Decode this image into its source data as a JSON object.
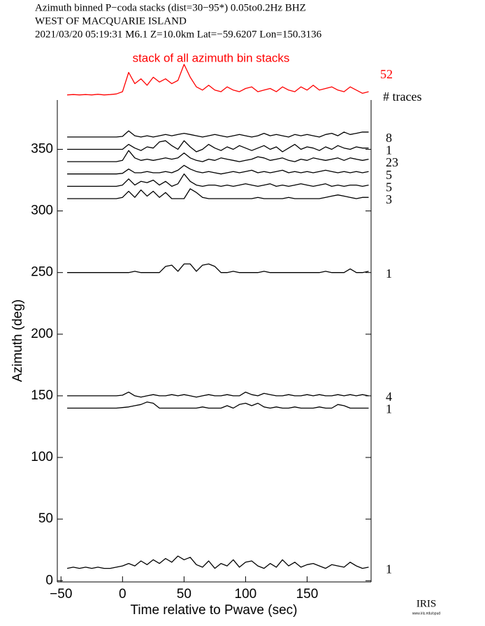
{
  "chart_data": {
    "type": "record-section",
    "title_lines": [
      "Azimuth binned P−coda stacks (dist=30−95*)  0.05to0.2Hz  BHZ",
      "WEST OF MACQUARIE ISLAND",
      "2021/03/20  05:19:31  M6.1  Z=10.0km Lat=−59.6207 Lon=150.3136"
    ],
    "xlabel": "Time relative to Pwave (sec)",
    "ylabel": "Azimuth (deg)",
    "count_header": "# traces",
    "xlim": [
      -53,
      202
    ],
    "ylim": [
      -1,
      390
    ],
    "xticks": [
      {
        "value": -50,
        "label": "−50"
      },
      0,
      50,
      100,
      150
    ],
    "yticks": [
      0,
      50,
      100,
      150,
      200,
      250,
      300,
      350
    ],
    "x": [
      -45,
      -40,
      -35,
      -30,
      -25,
      -20,
      -15,
      -10,
      -5,
      0,
      5,
      10,
      15,
      20,
      25,
      30,
      35,
      40,
      45,
      50,
      55,
      60,
      65,
      70,
      75,
      80,
      85,
      90,
      95,
      100,
      105,
      110,
      115,
      120,
      125,
      130,
      135,
      140,
      145,
      150,
      155,
      160,
      165,
      170,
      175,
      180,
      185,
      190,
      195,
      200
    ],
    "stack": {
      "title": "stack of all azimuth bin stacks",
      "count": 52,
      "color": "#ff0000",
      "values": [
        0.05,
        0.06,
        0.05,
        0.06,
        0.05,
        0.07,
        0.05,
        0.06,
        0.08,
        0.15,
        0.75,
        0.4,
        0.55,
        0.35,
        0.6,
        0.45,
        0.55,
        0.4,
        0.5,
        1.0,
        0.6,
        0.3,
        0.2,
        0.35,
        0.2,
        0.15,
        0.3,
        0.2,
        0.15,
        0.25,
        0.3,
        0.15,
        0.2,
        0.25,
        0.15,
        0.3,
        0.2,
        0.15,
        0.3,
        0.2,
        0.35,
        0.2,
        0.25,
        0.3,
        0.2,
        0.15,
        0.3,
        0.2,
        0.1,
        0.15
      ]
    },
    "series": [
      {
        "count": 8,
        "color": "#000000",
        "values": [
          360,
          360,
          360,
          360,
          360,
          360,
          360,
          360,
          360,
          360.5,
          365,
          361,
          360,
          361,
          360,
          361,
          362,
          361,
          362,
          363,
          362,
          361,
          360,
          361,
          362,
          361,
          360,
          361,
          362,
          361,
          360,
          361,
          363,
          361,
          362,
          361,
          360,
          362,
          361,
          362,
          361,
          360,
          362,
          363,
          361,
          364,
          362,
          363,
          364,
          364
        ]
      },
      {
        "count": 1,
        "color": "#000000",
        "values": [
          350,
          350,
          350,
          350,
          350,
          350,
          350,
          350,
          350,
          350,
          354,
          351,
          349,
          352,
          351,
          356,
          357,
          353,
          350,
          357,
          352,
          348,
          350,
          354,
          351,
          349,
          352,
          350,
          353,
          351,
          349,
          351,
          353,
          350,
          352,
          348,
          351,
          354,
          350,
          352,
          351,
          349,
          352,
          350,
          353,
          351,
          350,
          352,
          351,
          351
        ]
      },
      {
        "count": 23,
        "color": "#000000",
        "values": [
          340,
          340,
          340,
          340,
          340,
          340,
          340,
          340,
          340,
          341,
          349,
          343,
          341,
          342,
          341,
          342,
          343,
          342,
          343,
          347,
          343,
          341,
          340,
          342,
          341,
          343,
          342,
          341,
          340,
          341,
          342,
          344,
          343,
          341,
          342,
          343,
          341,
          340,
          342,
          341,
          343,
          342,
          341,
          342,
          343,
          341,
          343,
          342,
          341,
          342
        ]
      },
      {
        "count": 5,
        "color": "#000000",
        "values": [
          330,
          330,
          330,
          330,
          330,
          330,
          330,
          330,
          330,
          330.5,
          334,
          331,
          331,
          332,
          331,
          331,
          332,
          331,
          333,
          337,
          334,
          332,
          331,
          332,
          331,
          330,
          331,
          332,
          331,
          332,
          333,
          331,
          332,
          331,
          332,
          333,
          331,
          332,
          331,
          332,
          331,
          332,
          333,
          332,
          331,
          332,
          331,
          332,
          331,
          332
        ]
      },
      {
        "count": 5,
        "color": "#000000",
        "values": [
          320,
          320,
          320,
          320,
          320,
          320,
          320,
          320,
          320,
          321,
          326,
          321,
          324,
          323,
          325,
          321,
          324,
          320,
          322,
          330,
          324,
          321,
          320,
          321,
          321,
          320,
          321,
          320,
          321,
          322,
          321,
          320,
          321,
          322,
          320,
          321,
          320,
          321,
          322,
          321,
          320,
          321,
          322,
          320,
          321,
          320,
          321,
          321,
          320,
          321
        ]
      },
      {
        "count": 3,
        "color": "#000000",
        "values": [
          310,
          310,
          310,
          310,
          310,
          310,
          310,
          310,
          310,
          311,
          316,
          311,
          317,
          312,
          316,
          311,
          315,
          310,
          310,
          310,
          318,
          315,
          311,
          310,
          310,
          310,
          310,
          310,
          310,
          310,
          310,
          311,
          310,
          310,
          310,
          310,
          311,
          310,
          310,
          310,
          310,
          310,
          311,
          312,
          313,
          312,
          311,
          310,
          311,
          311
        ]
      },
      {
        "count": 1,
        "color": "#000000",
        "values": [
          250,
          250,
          250,
          250,
          250,
          250,
          250,
          250,
          250,
          250,
          250,
          251,
          250,
          250,
          250,
          250,
          255,
          256,
          251,
          257,
          257,
          251,
          256,
          257,
          255,
          250,
          250,
          251,
          250,
          250,
          250,
          250,
          251,
          250,
          250,
          250,
          250,
          250,
          250,
          250,
          250,
          250,
          251,
          250,
          250,
          250,
          253,
          250,
          250,
          251
        ]
      },
      {
        "count": 4,
        "color": "#000000",
        "values": [
          150,
          150,
          150,
          150,
          150,
          150,
          150,
          150,
          150,
          150.5,
          153,
          150,
          149,
          150,
          151,
          150,
          150,
          151,
          150,
          151,
          150,
          149,
          150,
          151,
          150,
          150,
          151,
          150,
          150,
          153,
          151,
          150,
          152,
          151,
          150,
          150,
          151,
          150,
          150,
          151,
          150,
          151,
          150,
          150,
          151,
          150,
          151,
          150,
          151,
          150
        ]
      },
      {
        "count": 1,
        "color": "#000000",
        "values": [
          140,
          140,
          140,
          140,
          140,
          140,
          140,
          140,
          140,
          140.5,
          141,
          142,
          143,
          145,
          144,
          140,
          140,
          140,
          140,
          140,
          140,
          140,
          141,
          140,
          140,
          140,
          142,
          140,
          143,
          144,
          142,
          144,
          141,
          140,
          141,
          140,
          140,
          141,
          140,
          140,
          140,
          141,
          140,
          140,
          143,
          142,
          140,
          140,
          140,
          140
        ]
      },
      {
        "count": 1,
        "color": "#000000",
        "values": [
          10,
          11,
          10,
          11,
          10,
          11,
          10,
          10,
          11,
          12,
          14,
          12,
          16,
          13,
          17,
          14,
          18,
          15,
          20,
          17,
          19,
          13,
          11,
          16,
          10,
          14,
          12,
          17,
          11,
          15,
          16,
          12,
          10,
          14,
          11,
          17,
          12,
          15,
          11,
          13,
          14,
          12,
          10,
          13,
          12,
          11,
          15,
          12,
          10,
          11
        ]
      }
    ],
    "logo": "IRIS",
    "logo_url": "www.iris.edu/spud"
  }
}
